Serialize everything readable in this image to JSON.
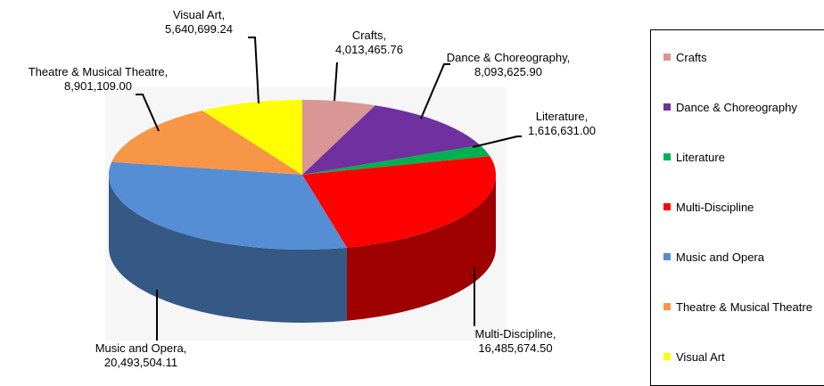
{
  "chart_data": {
    "type": "pie",
    "title": "",
    "legend_position": "right",
    "slices": [
      {
        "label": "Crafts",
        "value": 4013465.76,
        "value_label": "4,013,465.76",
        "color": "#D99694"
      },
      {
        "label": "Dance & Choreography",
        "value": 8093625.9,
        "value_label": "8,093,625.90",
        "color": "#7030A0"
      },
      {
        "label": "Literature",
        "value": 1616631.0,
        "value_label": "1,616,631.00",
        "color": "#00B050"
      },
      {
        "label": "Multi-Discipline",
        "value": 16485674.5,
        "value_label": "16,485,674.50",
        "color": "#FF0000"
      },
      {
        "label": "Music and Opera",
        "value": 20493504.11,
        "value_label": "20,493,504.11",
        "color": "#558ED5"
      },
      {
        "label": "Theatre & Musical Theatre",
        "value": 8901109.0,
        "value_label": "8,901,109.00",
        "color": "#F79646"
      },
      {
        "label": "Visual Art",
        "value": 5640699.24,
        "value_label": "5,640,699.24",
        "color": "#FFFF00"
      }
    ]
  }
}
